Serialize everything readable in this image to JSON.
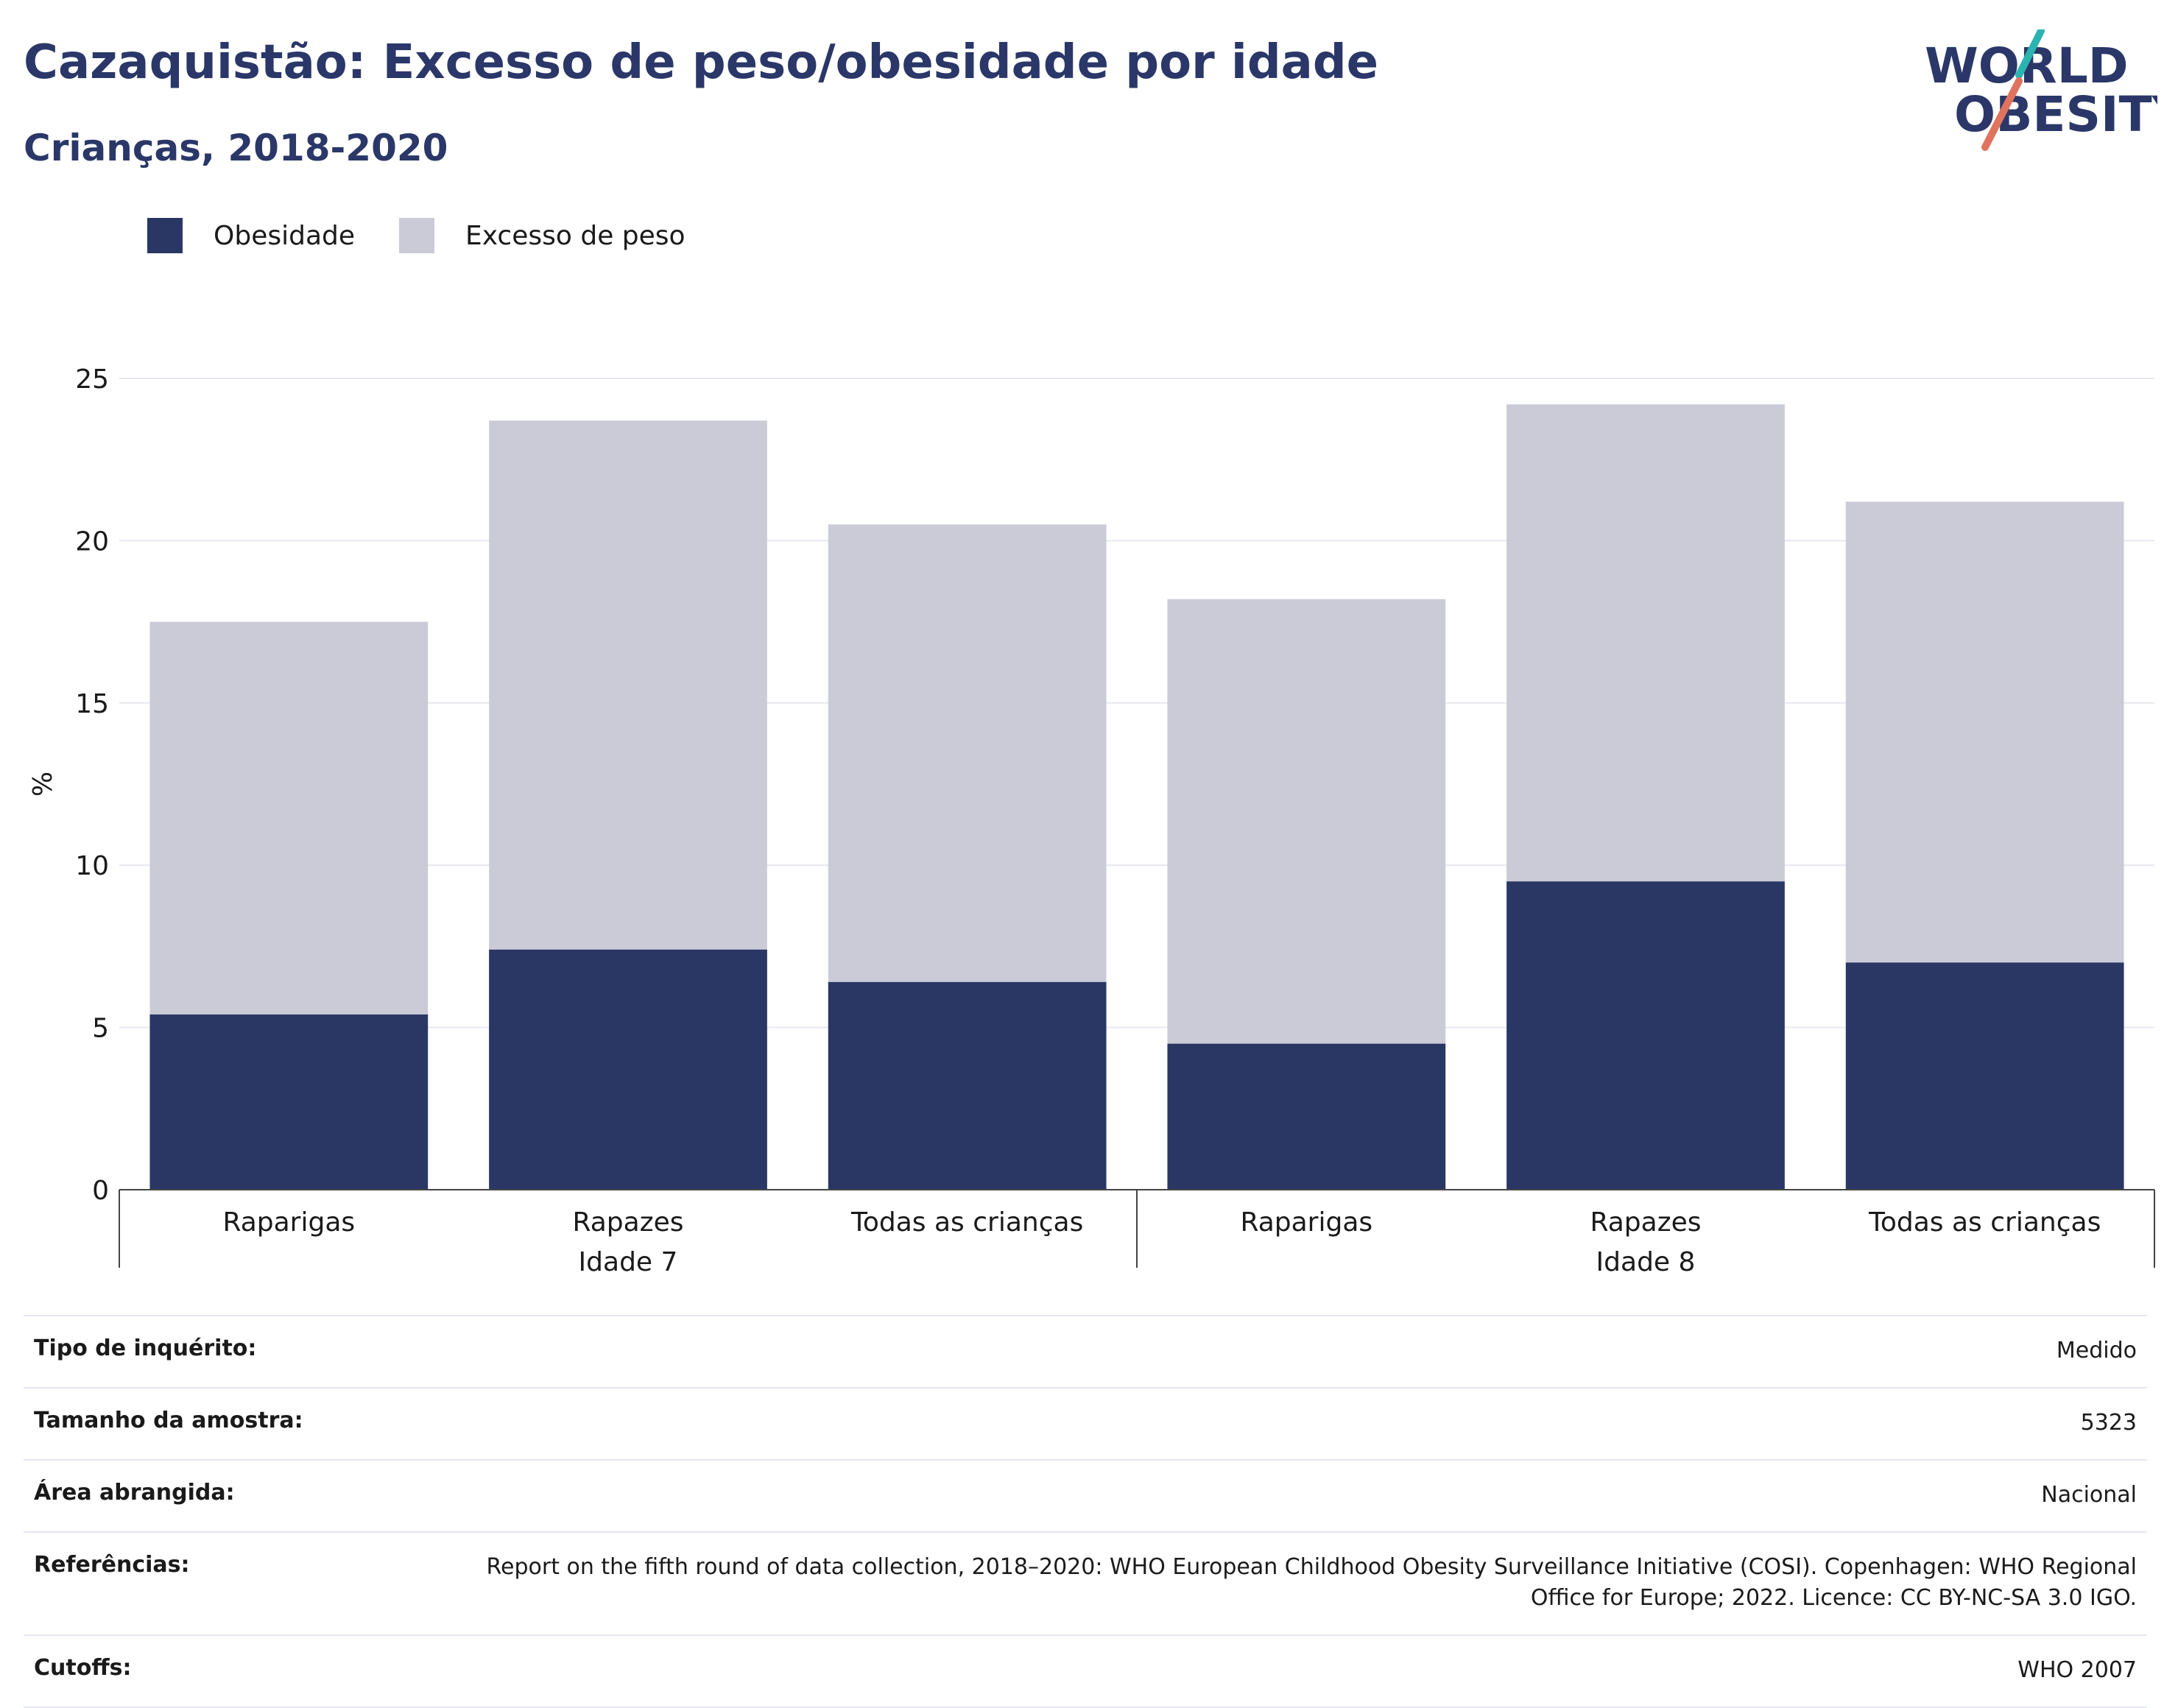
{
  "header": {
    "title": "Cazaquistão: Excesso de peso/obesidade por idade",
    "subtitle": "Crianças, 2018-2020",
    "logo_line1": "WORLD",
    "logo_line2": "OBESITY"
  },
  "colors": {
    "obesity": "#2a3765",
    "overweight": "#cacbd7",
    "title": "#2a3768",
    "logo_teal": "#2bb3b1",
    "logo_coral": "#e0735e"
  },
  "chart_data": {
    "type": "bar",
    "stacked": true,
    "ylabel": "%",
    "ylim": [
      0,
      25
    ],
    "yticks": [
      0,
      5,
      10,
      15,
      20,
      25
    ],
    "grid": true,
    "legend_placement": "top-left",
    "groups": [
      {
        "label": "Idade 7",
        "categories": [
          "Raparigas",
          "Rapazes",
          "Todas as crianças"
        ]
      },
      {
        "label": "Idade 8",
        "categories": [
          "Raparigas",
          "Rapazes",
          "Todas as crianças"
        ]
      }
    ],
    "series": [
      {
        "name": "Obesidade",
        "values": [
          5.4,
          7.4,
          6.4,
          4.5,
          9.5,
          7.0
        ]
      },
      {
        "name": "Excesso de peso",
        "values": [
          12.1,
          16.3,
          14.1,
          13.7,
          14.7,
          14.2
        ]
      }
    ]
  },
  "metadata": [
    {
      "label": "Tipo de inquérito:",
      "value": "Medido"
    },
    {
      "label": "Tamanho da amostra:",
      "value": "5323"
    },
    {
      "label": "Área abrangida:",
      "value": "Nacional"
    },
    {
      "label": "Referências:",
      "value": "Report on the fifth round of data collection, 2018–2020: WHO European Childhood Obesity Surveillance Initiative (COSI). Copenhagen: WHO Regional Office for Europe; 2022. Licence: CC BY-NC-SA 3.0 IGO."
    },
    {
      "label": "Cutoffs:",
      "value": "WHO 2007"
    }
  ]
}
